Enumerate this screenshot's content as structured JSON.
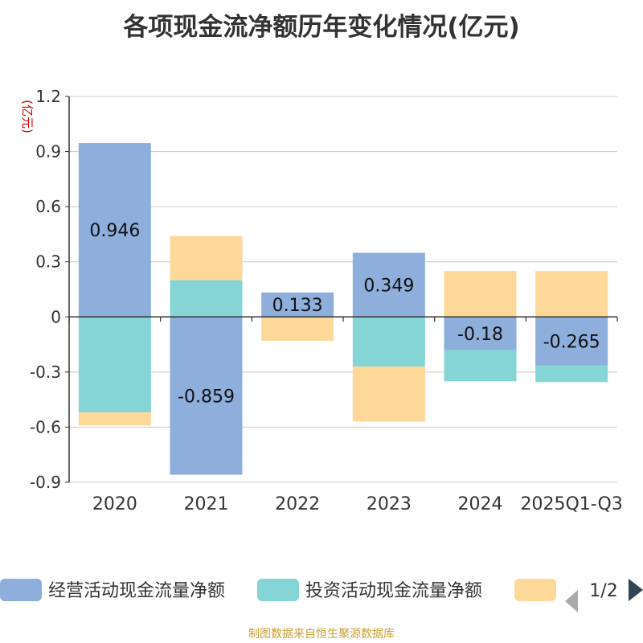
{
  "title": "各项现金流净额历年变化情况(亿元)",
  "footer": "制图数据来自恒生聚源数据库",
  "colors": {
    "operating": "#8eaedb",
    "investing": "#86d5d6",
    "financing": "#fed899",
    "axis": "#333333",
    "grid": "#cccccc",
    "unit": "#cc0000",
    "footer": "#c8a033"
  },
  "chart_data": {
    "type": "bar",
    "stacked": true,
    "title": "各项现金流净额历年变化情况(亿元)",
    "ylabel": "(亿元)",
    "ylim": [
      -0.9,
      1.2
    ],
    "yticks": [
      1.2,
      0.9,
      0.6,
      0.3,
      0,
      -0.3,
      -0.6,
      -0.9
    ],
    "ytick_labels": [
      "1.2",
      "0.9",
      "0.6",
      "0.3",
      "0",
      "-0.3",
      "-0.6",
      "-0.9"
    ],
    "categories": [
      "2020",
      "2021",
      "2022",
      "2023",
      "2024",
      "2025Q1-Q3"
    ],
    "series": [
      {
        "name": "经营活动现金流量净额",
        "color": "#8eaedb",
        "values": [
          0.946,
          -0.859,
          0.133,
          0.349,
          -0.18,
          -0.265
        ],
        "data_labels": [
          "0.946",
          "-0.859",
          "0.133",
          "0.349",
          "-0.18",
          "-0.265"
        ]
      },
      {
        "name": "投资活动现金流量净额",
        "color": "#86d5d6",
        "values": [
          -0.52,
          0.2,
          0,
          -0.27,
          -0.17,
          -0.09
        ]
      },
      {
        "name": "",
        "color": "#fed899",
        "values": [
          -0.07,
          0.24,
          -0.13,
          -0.3,
          0.25,
          0.25
        ]
      }
    ],
    "legend": {
      "position": "bottom",
      "page": "1/2"
    }
  }
}
